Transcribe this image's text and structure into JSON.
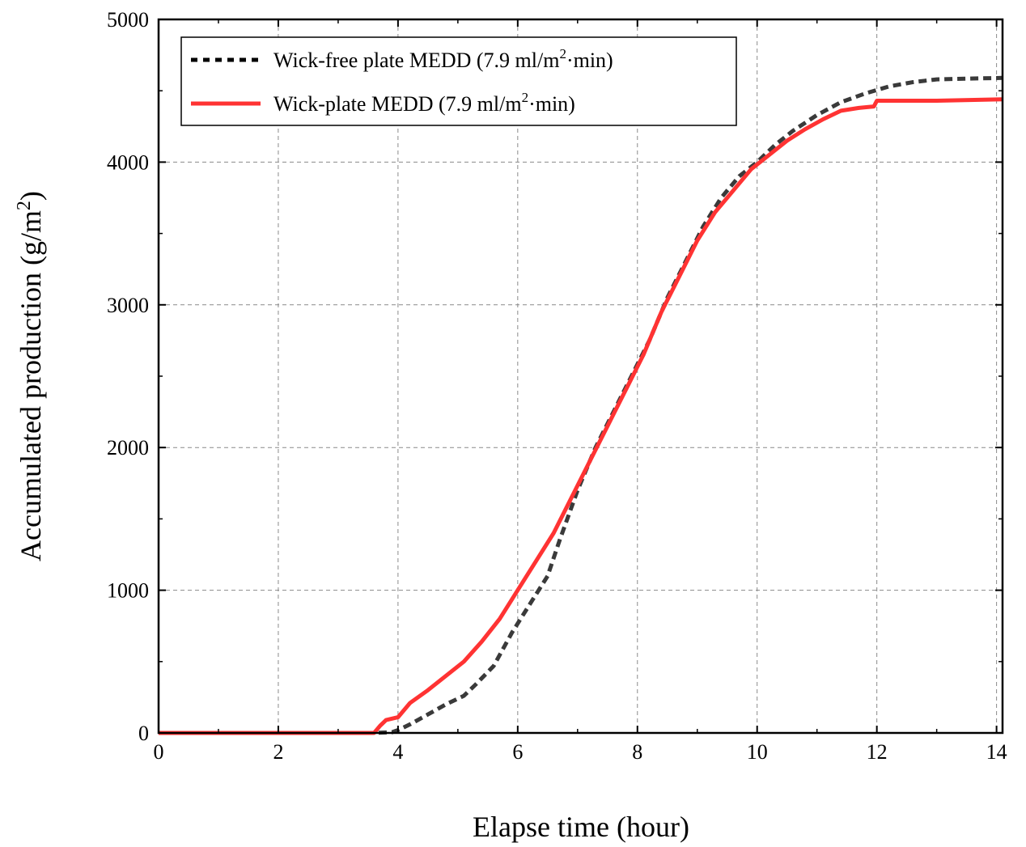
{
  "chart_data": {
    "type": "line",
    "title": "",
    "xlabel": "Elapse time (hour)",
    "ylabel": "Accumulated production (g/m²)",
    "xlim": [
      0,
      14.1
    ],
    "ylim": [
      0,
      5000
    ],
    "xticks": [
      0,
      2,
      4,
      6,
      8,
      10,
      12,
      14
    ],
    "yticks": [
      0,
      1000,
      2000,
      3000,
      4000,
      5000
    ],
    "grid": true,
    "legend_position": "top-left",
    "series": [
      {
        "name": "Wick-free plate MEDD (7.9 ml/m²·min)",
        "legend_prefix": "Wick-free plate MEDD (7.9 ml/m",
        "legend_sup": "2",
        "legend_suffix": "·min)",
        "color": "#3a3a3a",
        "style": "dashed",
        "x": [
          0,
          3.6,
          3.9,
          4.0,
          4.2,
          4.5,
          4.8,
          5.1,
          5.3,
          5.6,
          5.9,
          6.2,
          6.5,
          6.7,
          7.0,
          7.3,
          7.6,
          7.9,
          8.2,
          8.5,
          8.8,
          9.1,
          9.4,
          9.7,
          10.0,
          10.3,
          10.6,
          11.0,
          11.4,
          11.8,
          12.2,
          12.6,
          13.0,
          13.5,
          14.1
        ],
        "y": [
          0,
          0,
          5,
          20,
          60,
          130,
          200,
          260,
          340,
          470,
          700,
          900,
          1100,
          1350,
          1700,
          2000,
          2250,
          2500,
          2750,
          3050,
          3300,
          3550,
          3750,
          3900,
          4000,
          4120,
          4220,
          4330,
          4420,
          4480,
          4530,
          4560,
          4580,
          4585,
          4590
        ]
      },
      {
        "name": "Wick-plate MEDD (7.9 ml/m²·min)",
        "legend_prefix": "Wick-plate MEDD (7.9 ml/m",
        "legend_sup": "2",
        "legend_suffix": "·min)",
        "color": "#ff3333",
        "style": "solid",
        "x": [
          0,
          3.6,
          3.7,
          3.8,
          4.0,
          4.2,
          4.5,
          4.8,
          5.1,
          5.4,
          5.7,
          6.0,
          6.3,
          6.6,
          6.9,
          7.2,
          7.5,
          7.8,
          8.1,
          8.4,
          8.7,
          9.0,
          9.3,
          9.6,
          9.9,
          10.2,
          10.5,
          10.8,
          11.1,
          11.4,
          11.7,
          11.95,
          12.0,
          13.0,
          14.1
        ],
        "y": [
          0,
          0,
          50,
          90,
          110,
          210,
          300,
          400,
          500,
          640,
          800,
          1000,
          1200,
          1400,
          1650,
          1900,
          2150,
          2400,
          2650,
          2950,
          3200,
          3450,
          3650,
          3800,
          3950,
          4050,
          4150,
          4230,
          4300,
          4360,
          4380,
          4390,
          4430,
          4430,
          4440
        ]
      }
    ]
  }
}
